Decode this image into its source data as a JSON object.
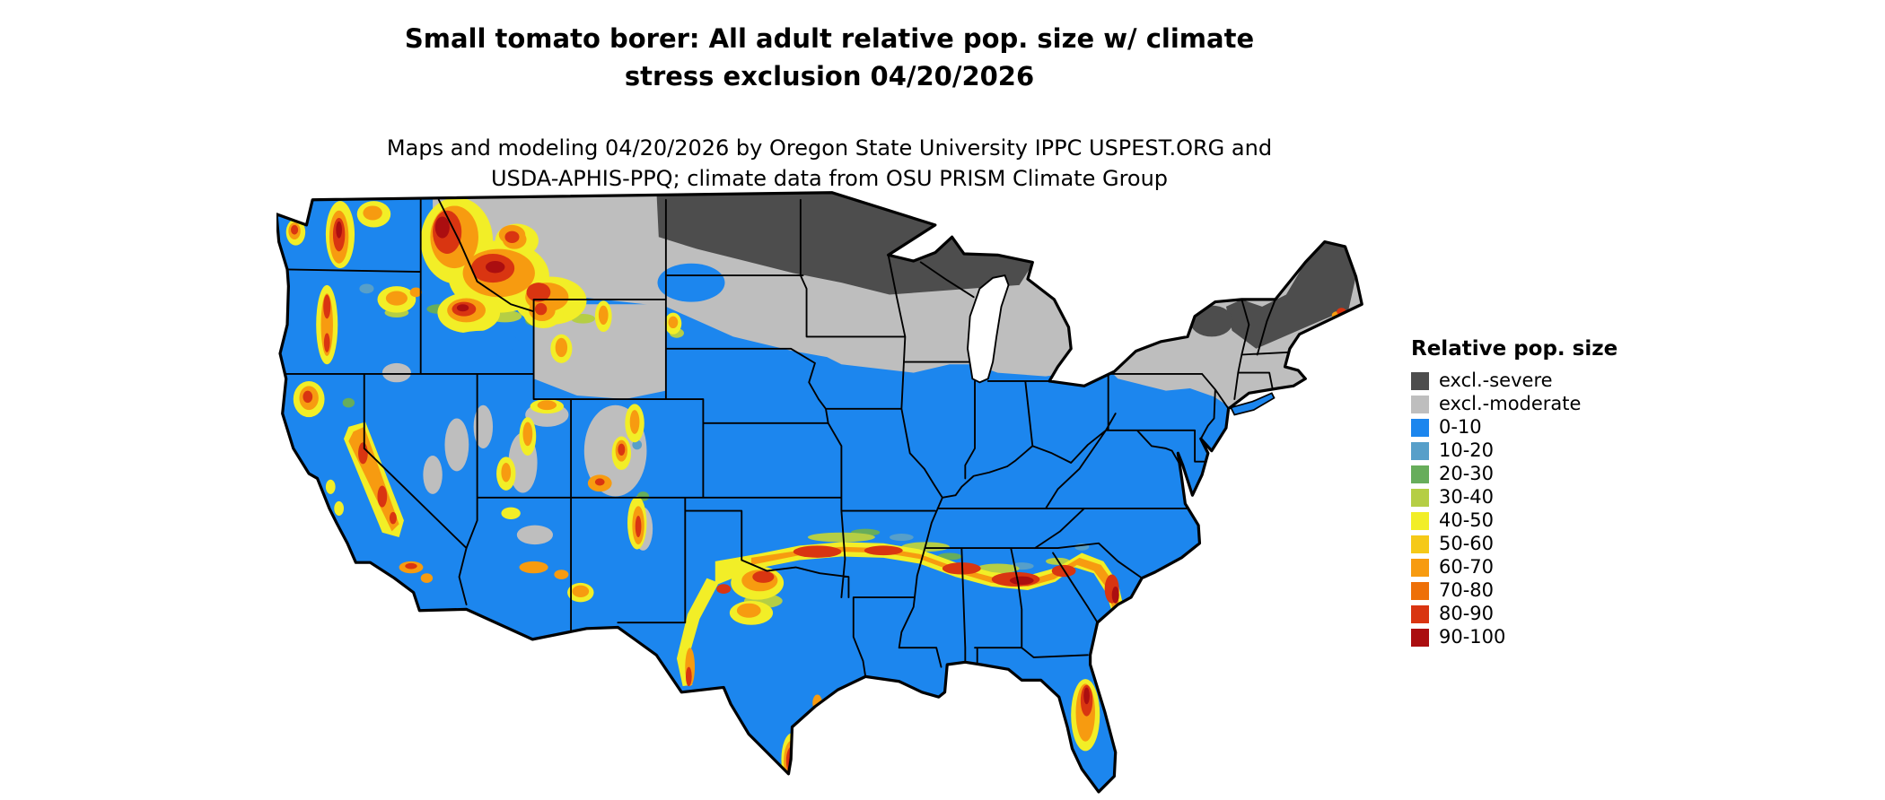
{
  "title": {
    "line1": "Small tomato borer: All adult relative pop. size w/ climate",
    "line2": "stress exclusion 04/20/2026"
  },
  "subtitle": {
    "line1": "Maps and modeling 04/20/2026 by Oregon State University IPPC USPEST.ORG and",
    "line2": "USDA-APHIS-PPQ; climate data from OSU PRISM Climate Group"
  },
  "legend": {
    "title": "Relative pop. size",
    "items": [
      {
        "key": "excl_severe",
        "label": "excl.-severe",
        "color": "#4D4D4D"
      },
      {
        "key": "excl_moderate",
        "label": "excl.-moderate",
        "color": "#BEBEBE"
      },
      {
        "key": "p0_10",
        "label": "0-10",
        "color": "#1C86EE"
      },
      {
        "key": "p10_20",
        "label": "10-20",
        "color": "#579FC9"
      },
      {
        "key": "p20_30",
        "label": "20-30",
        "color": "#67AD5B"
      },
      {
        "key": "p30_40",
        "label": "30-40",
        "color": "#B5CE45"
      },
      {
        "key": "p40_50",
        "label": "40-50",
        "color": "#F2EE27"
      },
      {
        "key": "p50_60",
        "label": "50-60",
        "color": "#F5C918"
      },
      {
        "key": "p60_70",
        "label": "60-70",
        "color": "#F79B10"
      },
      {
        "key": "p70_80",
        "label": "70-80",
        "color": "#EE7008"
      },
      {
        "key": "p80_90",
        "label": "80-90",
        "color": "#D93511"
      },
      {
        "key": "p90_100",
        "label": "90-100",
        "color": "#AB0E10"
      }
    ]
  }
}
